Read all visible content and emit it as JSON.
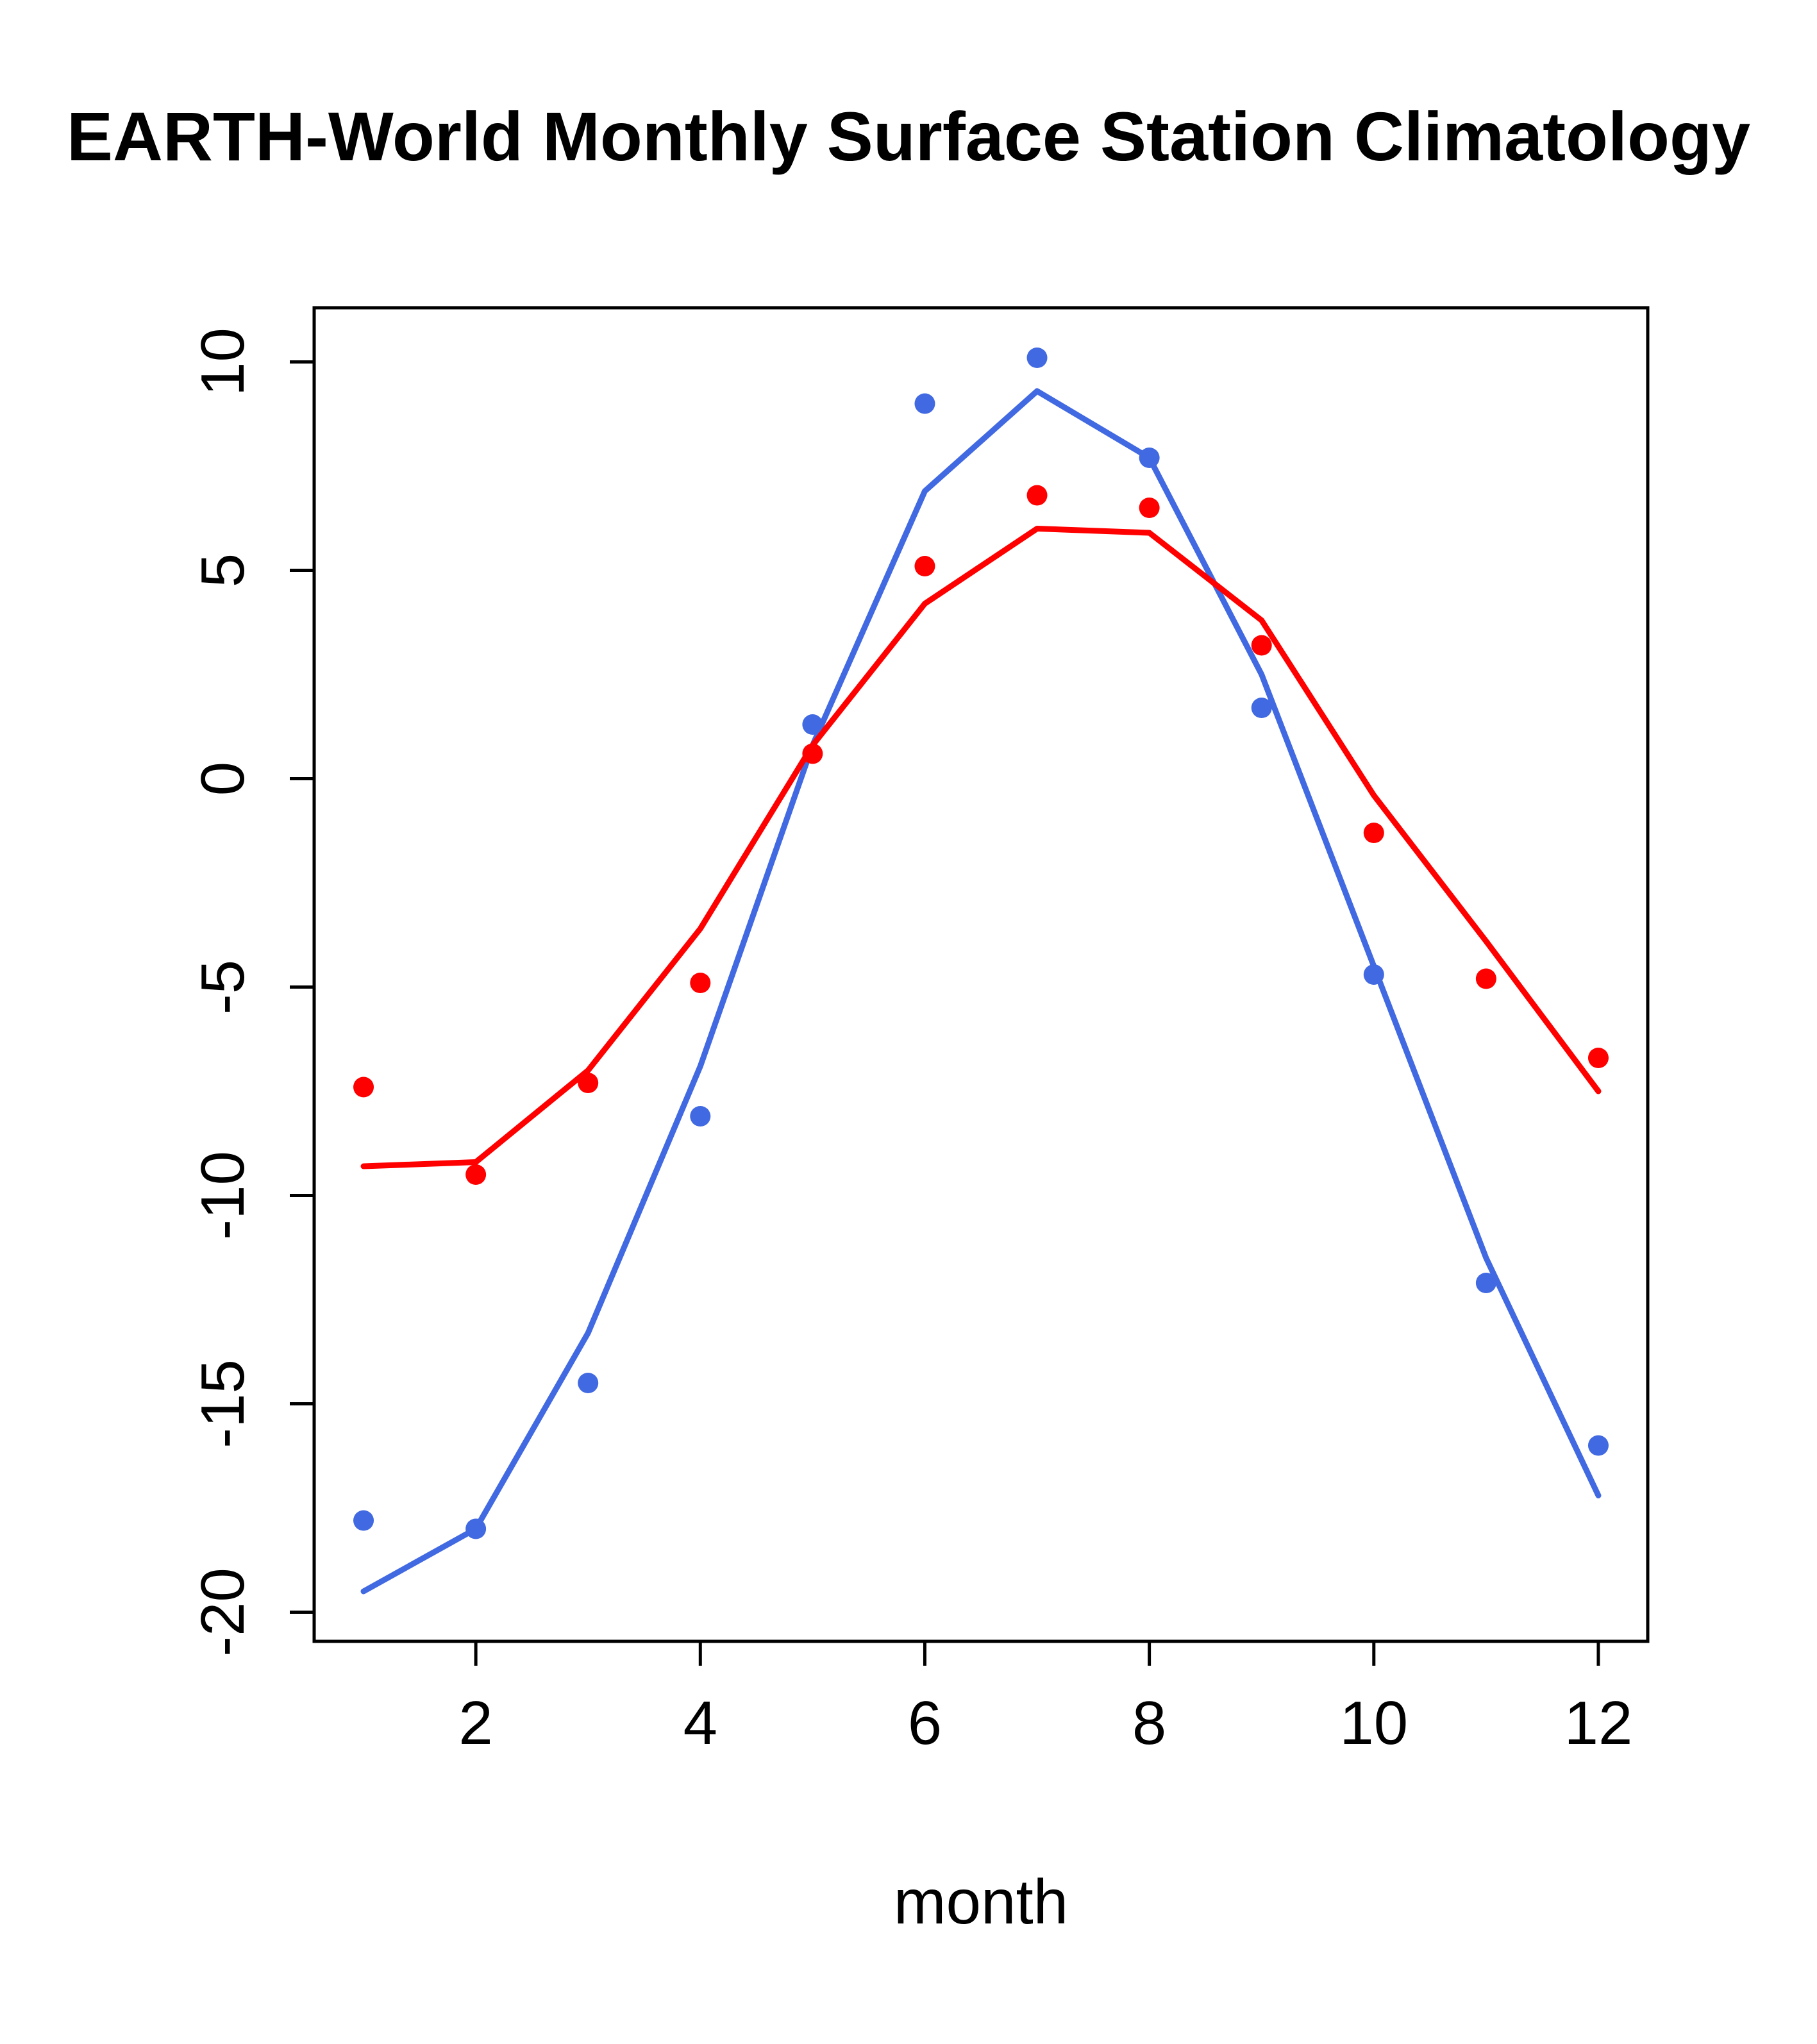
{
  "title": "EARTH-World Monthly Surface Station Climatology",
  "chart_data": {
    "type": "scatter",
    "title": "EARTH-World Monthly Surface Station Climatology",
    "xlabel": "month",
    "ylabel": "",
    "x": [
      1,
      2,
      3,
      4,
      5,
      6,
      7,
      8,
      9,
      10,
      11,
      12
    ],
    "xticks": [
      2,
      4,
      6,
      8,
      10,
      12
    ],
    "yticks": [
      -20,
      -15,
      -10,
      -5,
      0,
      5,
      10
    ],
    "xlim": [
      0.56,
      12.44
    ],
    "ylim": [
      -20.7,
      11.3
    ],
    "grid": false,
    "legend": "none",
    "colors": {
      "series_blue": "#4169E1",
      "series_red": "#FF0000",
      "axis": "#000000"
    },
    "series": [
      {
        "name": "blue-observed-points",
        "kind": "points",
        "color": "#4169E1",
        "values": [
          -17.8,
          -18.0,
          -14.5,
          -8.1,
          1.3,
          9.0,
          10.1,
          7.7,
          1.7,
          -4.7,
          -12.1,
          -16.0
        ]
      },
      {
        "name": "blue-fitted-line",
        "kind": "line",
        "color": "#4169E1",
        "values": [
          -19.5,
          -18.0,
          -13.3,
          -6.9,
          0.8,
          6.9,
          9.3,
          7.7,
          2.5,
          -4.5,
          -11.5,
          -17.2
        ]
      },
      {
        "name": "red-observed-points",
        "kind": "points",
        "color": "#FF0000",
        "values": [
          -7.4,
          -9.5,
          -7.3,
          -4.9,
          0.6,
          5.1,
          6.8,
          6.5,
          3.2,
          -1.3,
          -4.8,
          -6.7
        ]
      },
      {
        "name": "red-fitted-line",
        "kind": "line",
        "color": "#FF0000",
        "values": [
          -9.3,
          -9.2,
          -7.0,
          -3.6,
          0.8,
          4.2,
          6.0,
          5.9,
          3.8,
          -0.4,
          -3.9,
          -7.5
        ]
      }
    ]
  }
}
